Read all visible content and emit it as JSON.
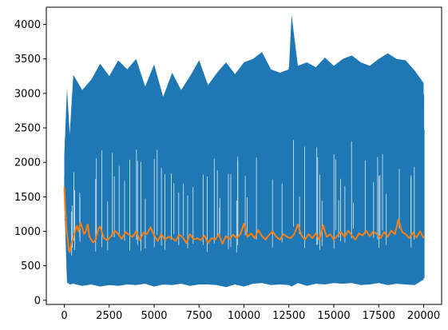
{
  "chart_data": {
    "type": "line",
    "title": "",
    "xlabel": "",
    "ylabel": "",
    "xlim": [
      -1000,
      21000
    ],
    "ylim": [
      -60,
      4250
    ],
    "grid": false,
    "legend": "none",
    "x_ticks": [
      0,
      2500,
      5000,
      7500,
      10000,
      12500,
      15000,
      17500,
      20000
    ],
    "x_tick_labels": [
      "0",
      "2500",
      "5000",
      "7500",
      "10000",
      "12500",
      "15000",
      "17500",
      "20000"
    ],
    "y_ticks": [
      0,
      500,
      1000,
      1500,
      2000,
      2500,
      3000,
      3500,
      4000
    ],
    "y_tick_labels": [
      "0",
      "500",
      "1000",
      "1500",
      "2000",
      "2500",
      "3000",
      "3500",
      "4000"
    ],
    "series": [
      {
        "color": "#1f77b4",
        "envelope": {
          "x": [
            0,
            150,
            300,
            500,
            1000,
            1500,
            2000,
            2500,
            3000,
            3500,
            4000,
            4500,
            5000,
            5500,
            6000,
            6500,
            7000,
            7500,
            8000,
            8500,
            9000,
            9500,
            10000,
            10500,
            11000,
            11500,
            12000,
            12500,
            12650,
            13000,
            13500,
            14000,
            14500,
            15000,
            15500,
            16000,
            16500,
            17000,
            17500,
            18000,
            18500,
            19000,
            19500,
            20000
          ],
          "upper": [
            2100,
            3080,
            2400,
            3270,
            3050,
            3200,
            3430,
            3250,
            3480,
            3350,
            3500,
            3100,
            3420,
            2950,
            3300,
            3050,
            3250,
            3480,
            3120,
            3300,
            3450,
            3280,
            3450,
            3500,
            3600,
            3350,
            3300,
            3350,
            4140,
            3400,
            3450,
            3380,
            3520,
            3400,
            3500,
            3550,
            3450,
            3400,
            3500,
            3580,
            3500,
            3480,
            3330,
            3150
          ],
          "lower": [
            1450,
            260,
            230,
            240,
            210,
            230,
            200,
            220,
            210,
            230,
            220,
            240,
            200,
            230,
            220,
            240,
            210,
            230,
            230,
            220,
            190,
            230,
            200,
            240,
            250,
            220,
            230,
            220,
            200,
            250,
            210,
            240,
            230,
            250,
            240,
            250,
            220,
            230,
            250,
            220,
            240,
            230,
            220,
            300
          ]
        }
      },
      {
        "color": "#ff7f0e",
        "x": [
          0,
          50,
          100,
          150,
          200,
          250,
          300,
          350,
          400,
          500,
          600,
          700,
          800,
          900,
          1000,
          1100,
          1200,
          1300,
          1400,
          1500,
          1600,
          1700,
          1800,
          1900,
          2000,
          2200,
          2400,
          2600,
          2800,
          3000,
          3200,
          3400,
          3600,
          3800,
          4000,
          4200,
          4400,
          4600,
          4800,
          5000,
          5200,
          5400,
          5600,
          5800,
          6000,
          6200,
          6400,
          6600,
          6800,
          7000,
          7200,
          7400,
          7600,
          7800,
          8000,
          8200,
          8400,
          8600,
          8800,
          9000,
          9200,
          9400,
          9600,
          9800,
          10000,
          10200,
          10400,
          10600,
          10800,
          11000,
          11200,
          11400,
          11600,
          11800,
          12000,
          12200,
          12400,
          12600,
          12800,
          13000,
          13200,
          13400,
          13600,
          13800,
          14000,
          14200,
          14400,
          14600,
          14800,
          15000,
          15200,
          15400,
          15600,
          15800,
          16000,
          16200,
          16400,
          16600,
          16800,
          17000,
          17200,
          17400,
          17600,
          17800,
          18000,
          18200,
          18400,
          18600,
          18800,
          19000,
          19200,
          19400,
          19600,
          19800,
          20000
        ],
        "y": [
          1640,
          1350,
          1100,
          950,
          880,
          720,
          700,
          760,
          820,
          900,
          1000,
          1080,
          1000,
          1120,
          1050,
          960,
          1000,
          1100,
          920,
          880,
          840,
          860,
          940,
          1040,
          1070,
          900,
          870,
          930,
          1010,
          960,
          890,
          990,
          950,
          920,
          1000,
          870,
          980,
          960,
          1060,
          940,
          860,
          960,
          880,
          920,
          900,
          860,
          950,
          910,
          830,
          960,
          880,
          900,
          870,
          940,
          830,
          900,
          880,
          960,
          820,
          930,
          890,
          950,
          900,
          960,
          1110,
          920,
          970,
          900,
          1020,
          930,
          880,
          950,
          1000,
          920,
          880,
          960,
          920,
          900,
          960,
          1100,
          940,
          880,
          960,
          900,
          970,
          880,
          1090,
          920,
          960,
          880,
          940,
          990,
          920,
          1010,
          940,
          880,
          970,
          940,
          1010,
          930,
          1000,
          960,
          900,
          990,
          920,
          1010,
          960,
          1170,
          990,
          960,
          900,
          980,
          910,
          1000,
          900
        ]
      }
    ]
  }
}
